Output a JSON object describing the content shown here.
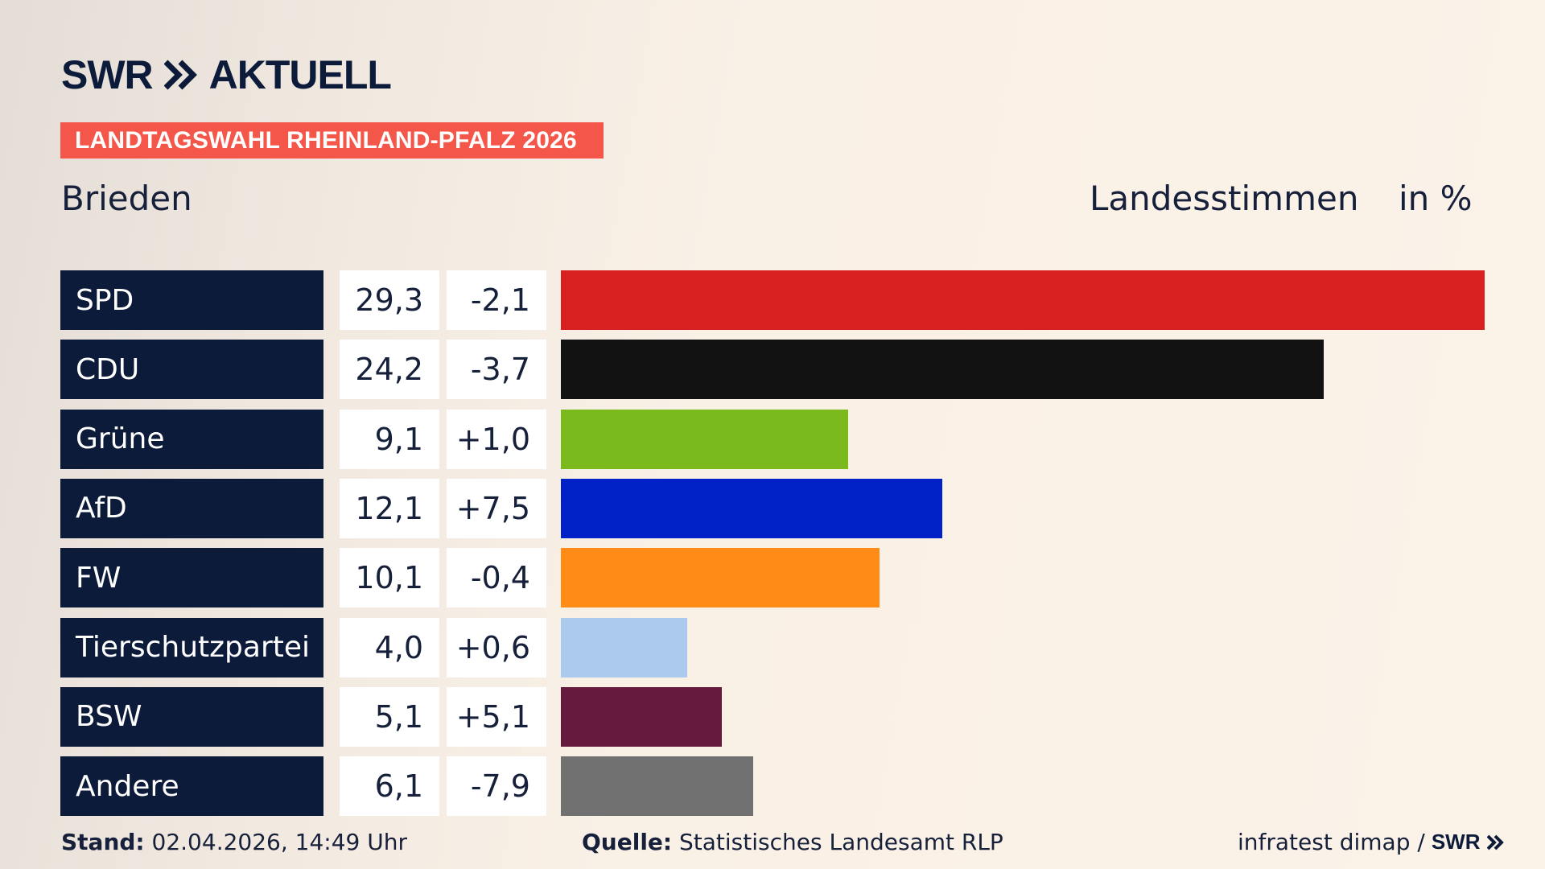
{
  "brand": {
    "logo_text": "SWR",
    "logo_suffix": "AKTUELL"
  },
  "header": {
    "banner": "LANDTAGSWAHL RHEINLAND-PFALZ 2026",
    "location": "Brieden",
    "measure": "Landesstimmen",
    "unit": "in %"
  },
  "chart_data": {
    "type": "bar",
    "orientation": "horizontal",
    "title": "LANDTAGSWAHL RHEINLAND-PFALZ 2026",
    "subtitle": "Brieden",
    "categories": [
      "SPD",
      "CDU",
      "Grüne",
      "AfD",
      "FW",
      "Tierschutzpartei",
      "BSW",
      "Andere"
    ],
    "values": [
      29.3,
      24.2,
      9.1,
      12.1,
      10.1,
      4.0,
      5.1,
      6.1
    ],
    "values_label": [
      "29,3",
      "24,2",
      "9,1",
      "12,1",
      "10,1",
      "4,0",
      "5,1",
      "6,1"
    ],
    "changes": [
      -2.1,
      -3.7,
      1.0,
      7.5,
      -0.4,
      0.6,
      5.1,
      -7.9
    ],
    "changes_label": [
      "-2,1",
      "-3,7",
      "+1,0",
      "+7,5",
      "-0,4",
      "+0,6",
      "+5,1",
      "-7,9"
    ],
    "colors": [
      "#d7201f",
      "#121212",
      "#7aba1d",
      "#0021c6",
      "#ff8c17",
      "#accaee",
      "#661a3e",
      "#717171"
    ],
    "xlim": [
      0,
      29.3
    ],
    "grid": false,
    "legend": "none"
  },
  "footer": {
    "stand_label": "Stand:",
    "stand_value": "02.04.2026, 14:49 Uhr",
    "source_label": "Quelle:",
    "source_value": "Statistisches Landesamt RLP",
    "credit": "infratest dimap /",
    "credit_logo": "SWR"
  },
  "icons": {
    "logo_chevrons": "double-chevron-icon"
  }
}
